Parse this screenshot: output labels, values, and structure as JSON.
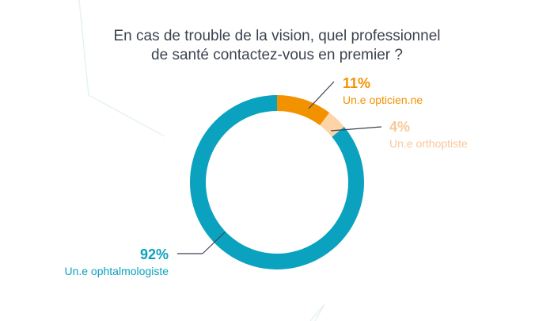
{
  "chart_data": {
    "type": "pie",
    "title_lines": [
      "En cas de trouble de la vision, quel professionnel",
      "de santé contactez-vous en premier ?"
    ],
    "slices": [
      {
        "label": "Un.e opticien.ne",
        "value": 11,
        "display": "11%",
        "color": "#f39200"
      },
      {
        "label": "Un.e orthoptiste",
        "value": 4,
        "display": "4%",
        "color": "#fdd3a8"
      },
      {
        "label": "Un.e ophtalmologiste",
        "value": 92,
        "display": "92%",
        "color": "#0aa2bf"
      }
    ],
    "start_angle_deg": 0,
    "label_colors": {
      "ophtalmologiste": "#0aa2bf",
      "opticien": "#f39200",
      "orthoptiste": "#f8c89a"
    },
    "legend": "none"
  }
}
